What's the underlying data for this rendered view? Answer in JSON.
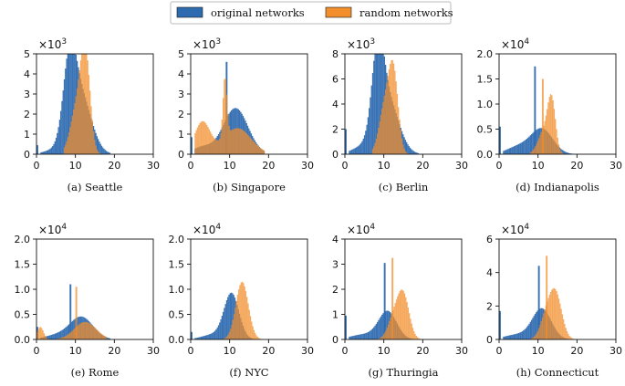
{
  "legend": {
    "original_label": "original networks",
    "random_label": "random networks",
    "original_color": "#2e6ab0",
    "random_color": "#f28e2b"
  },
  "chart_data": [
    {
      "id": "a",
      "type": "histogram",
      "caption": "(a) Seattle",
      "multiplier_base": "×10",
      "multiplier_exp": "3",
      "xlim": [
        0,
        30
      ],
      "ylim": [
        0,
        5
      ],
      "xticks": [
        "0",
        "10",
        "20",
        "30"
      ],
      "yticks": [
        "0",
        "1",
        "2",
        "3",
        "4",
        "5"
      ],
      "series": [
        {
          "name": "original networks",
          "spikes": [
            [
              0,
              0.45
            ]
          ],
          "peaks": [
            [
              8.5,
              3.6,
              1.6
            ],
            [
              11.2,
              3.0,
              2.8
            ],
            [
              5,
              0.2,
              3
            ]
          ],
          "xmin": 1,
          "xmax": 19
        },
        {
          "name": "random networks",
          "spikes": [],
          "peaks": [
            [
              12.6,
              4.4,
              1.2
            ],
            [
              10.5,
              2.4,
              1.7
            ]
          ],
          "xmin": 7,
          "xmax": 18
        }
      ]
    },
    {
      "id": "b",
      "type": "histogram",
      "caption": "(b) Singapore",
      "multiplier_base": "×10",
      "multiplier_exp": "3",
      "xlim": [
        0,
        30
      ],
      "ylim": [
        0,
        5
      ],
      "xticks": [
        "0",
        "10",
        "20",
        "30"
      ],
      "yticks": [
        "0",
        "1",
        "2",
        "3",
        "4",
        "5"
      ],
      "series": [
        {
          "name": "original networks",
          "spikes": [
            [
              0,
              0.85
            ],
            [
              9,
              4.6
            ]
          ],
          "peaks": [
            [
              11.5,
              2.3,
              3.2
            ],
            [
              3,
              0.35,
              2.5
            ]
          ],
          "xmin": 1,
          "xmax": 19
        },
        {
          "name": "random networks",
          "spikes": [],
          "peaks": [
            [
              8.8,
              3.0,
              0.5
            ],
            [
              3,
              1.6,
              2.0
            ],
            [
              12,
              1.3,
              3.5
            ]
          ],
          "xmin": 1,
          "xmax": 19
        }
      ]
    },
    {
      "id": "c",
      "type": "histogram",
      "caption": "(c) Berlin",
      "multiplier_base": "×10",
      "multiplier_exp": "3",
      "xlim": [
        0,
        30
      ],
      "ylim": [
        0,
        8
      ],
      "xticks": [
        "0",
        "10",
        "20",
        "30"
      ],
      "yticks": [
        "0",
        "2",
        "4",
        "6",
        "8"
      ],
      "series": [
        {
          "name": "original networks",
          "spikes": [
            [
              0,
              2.0
            ]
          ],
          "peaks": [
            [
              8.5,
              6.5,
              1.5
            ],
            [
              11,
              4.3,
              2.8
            ],
            [
              5,
              0.6,
              3
            ]
          ],
          "xmin": 1,
          "xmax": 19
        },
        {
          "name": "random networks",
          "spikes": [],
          "peaks": [
            [
              12.5,
              6.0,
              1.2
            ],
            [
              10.3,
              3.8,
              1.5
            ]
          ],
          "xmin": 7,
          "xmax": 18
        }
      ]
    },
    {
      "id": "d",
      "type": "histogram",
      "caption": "(d) Indianapolis",
      "multiplier_base": "×10",
      "multiplier_exp": "4",
      "xlim": [
        0,
        30
      ],
      "ylim": [
        0,
        2.0
      ],
      "xticks": [
        "0",
        "10",
        "20",
        "30"
      ],
      "yticks": [
        "0.0",
        "0.5",
        "1.0",
        "1.5",
        "2.0"
      ],
      "series": [
        {
          "name": "original networks",
          "spikes": [
            [
              0,
              0.55
            ],
            [
              9,
              1.75
            ]
          ],
          "peaks": [
            [
              11,
              0.5,
              2.8
            ],
            [
              5,
              0.15,
              3
            ]
          ],
          "xmin": 1,
          "xmax": 19
        },
        {
          "name": "random networks",
          "spikes": [
            [
              11,
              1.5
            ]
          ],
          "peaks": [
            [
              13.5,
              1.0,
              1.0
            ],
            [
              11.5,
              0.45,
              1.5
            ]
          ],
          "xmin": 8,
          "xmax": 18
        }
      ]
    },
    {
      "id": "e",
      "type": "histogram",
      "caption": "(e) Rome",
      "multiplier_base": "×10",
      "multiplier_exp": "4",
      "xlim": [
        0,
        30
      ],
      "ylim": [
        0,
        2.0
      ],
      "xticks": [
        "0",
        "10",
        "20",
        "30"
      ],
      "yticks": [
        "0.0",
        "0.5",
        "1.0",
        "1.5",
        "2.0"
      ],
      "series": [
        {
          "name": "original networks",
          "spikes": [
            [
              0,
              0.25
            ],
            [
              8.5,
              1.1
            ]
          ],
          "peaks": [
            [
              11.5,
              0.45,
              3.0
            ],
            [
              5,
              0.08,
              3
            ]
          ],
          "xmin": 1,
          "xmax": 19
        },
        {
          "name": "random networks",
          "spikes": [
            [
              10,
              1.05
            ]
          ],
          "peaks": [
            [
              1,
              0.25,
              0.8
            ],
            [
              12.5,
              0.35,
              2.8
            ]
          ],
          "xmin": 0,
          "xmax": 18
        }
      ]
    },
    {
      "id": "f",
      "type": "histogram",
      "caption": "(f) NYC",
      "multiplier_base": "×10",
      "multiplier_exp": "4",
      "xlim": [
        0,
        30
      ],
      "ylim": [
        0,
        2.0
      ],
      "xticks": [
        "0",
        "10",
        "20",
        "30"
      ],
      "yticks": [
        "0.0",
        "0.5",
        "1.0",
        "1.5",
        "2.0"
      ],
      "series": [
        {
          "name": "original networks",
          "spikes": [
            [
              0,
              0.15
            ]
          ],
          "peaks": [
            [
              10.5,
              0.9,
              1.9
            ],
            [
              6,
              0.1,
              3
            ]
          ],
          "xmin": 1,
          "xmax": 19
        },
        {
          "name": "random networks",
          "spikes": [],
          "peaks": [
            [
              13.2,
              1.15,
              1.6
            ]
          ],
          "xmin": 8,
          "xmax": 19
        }
      ]
    },
    {
      "id": "g",
      "type": "histogram",
      "caption": "(g) Thuringia",
      "multiplier_base": "×10",
      "multiplier_exp": "4",
      "xlim": [
        0,
        30
      ],
      "ylim": [
        0,
        4
      ],
      "xticks": [
        "0",
        "10",
        "20",
        "30"
      ],
      "yticks": [
        "0",
        "1",
        "2",
        "3",
        "4"
      ],
      "series": [
        {
          "name": "original networks",
          "spikes": [
            [
              0,
              0.95
            ],
            [
              10,
              3.05
            ]
          ],
          "peaks": [
            [
              11,
              1.1,
              2.3
            ],
            [
              5,
              0.2,
              3.5
            ]
          ],
          "xmin": 1,
          "xmax": 19
        },
        {
          "name": "random networks",
          "spikes": [
            [
              12,
              3.25
            ]
          ],
          "peaks": [
            [
              15,
              1.75,
              1.5
            ],
            [
              12.5,
              0.8,
              1.5
            ]
          ],
          "xmin": 8,
          "xmax": 20
        }
      ]
    },
    {
      "id": "h",
      "type": "histogram",
      "caption": "(h) Connecticut",
      "multiplier_base": "×10",
      "multiplier_exp": "4",
      "xlim": [
        0,
        30
      ],
      "ylim": [
        0,
        6
      ],
      "xticks": [
        "0",
        "10",
        "20",
        "30"
      ],
      "yticks": [
        "0",
        "2",
        "4",
        "6"
      ],
      "series": [
        {
          "name": "original networks",
          "spikes": [
            [
              0,
              1.7
            ],
            [
              10,
              4.4
            ]
          ],
          "peaks": [
            [
              11,
              1.8,
              2.4
            ],
            [
              5,
              0.3,
              3.5
            ]
          ],
          "xmin": 1,
          "xmax": 19
        },
        {
          "name": "random networks",
          "spikes": [
            [
              12,
              5.0
            ]
          ],
          "peaks": [
            [
              14.5,
              2.7,
              1.6
            ],
            [
              12,
              1.2,
              1.5
            ]
          ],
          "xmin": 8,
          "xmax": 20
        }
      ]
    }
  ]
}
